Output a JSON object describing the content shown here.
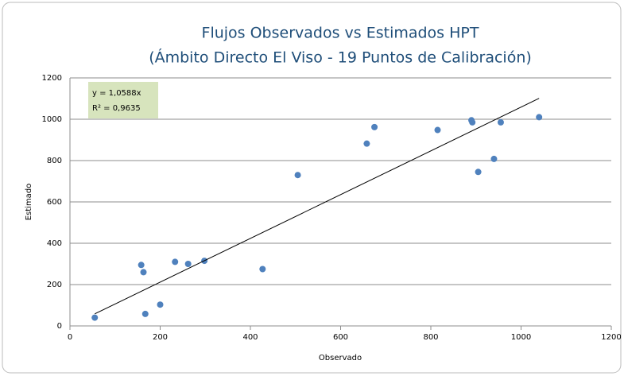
{
  "chart_data": {
    "type": "scatter",
    "title": "Flujos Observados vs Estimados HPT",
    "subtitle": "(Ámbito Directo El Viso - 19 Puntos de Calibración)",
    "x_label": "Observado",
    "y_label": "Estimado",
    "x": [
      55,
      158,
      163,
      167,
      200,
      233,
      262,
      298,
      427,
      505,
      658,
      675,
      815,
      890,
      892,
      905,
      940,
      955,
      1040
    ],
    "values": [
      40,
      295,
      260,
      58,
      103,
      310,
      300,
      315,
      275,
      730,
      882,
      962,
      948,
      995,
      985,
      745,
      808,
      985,
      1010
    ],
    "color": "#4f81bd",
    "xlim": [
      0,
      1200
    ],
    "xticks": [
      0,
      200,
      400,
      600,
      800,
      1000,
      1200
    ],
    "ylim": [
      0,
      1200
    ],
    "yticks": [
      0,
      200,
      400,
      600,
      800,
      1000,
      1200
    ],
    "grid": true,
    "trendline": {
      "slope": 1.0588,
      "xlim": [
        55,
        1040
      ],
      "label": "y = 1,0588x",
      "r2": 0.9635,
      "r2_label": "R² = 0,9635"
    }
  }
}
